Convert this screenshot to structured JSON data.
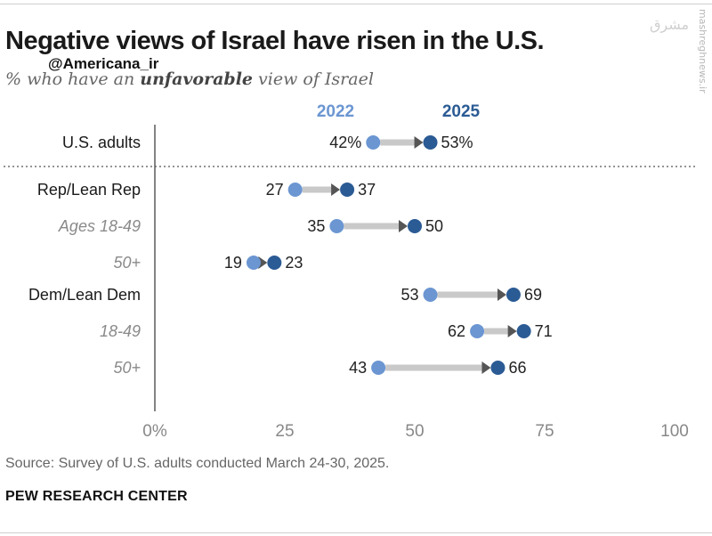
{
  "header": {
    "title": "Negative views of Israel have risen in the U.S.",
    "handle": "@Americana_ir",
    "subtitle_pre": "% who have an ",
    "subtitle_bold": "unfavorable",
    "subtitle_post": " view of Israel"
  },
  "watermark": {
    "text": "mashreghnews.ir",
    "logo_text": "مشرق"
  },
  "colors": {
    "light": "#6b96d2",
    "dark": "#2b5b94",
    "arrow": "#c9c9c9",
    "arrow_head": "#555555",
    "axis": "#333333",
    "tick_text": "#888888"
  },
  "chart_data": {
    "type": "dumbbell",
    "title": "Negative views of Israel have risen in the U.S.",
    "subtitle": "% who have an unfavorable view of Israel",
    "legend": [
      "2022",
      "2025"
    ],
    "xlim": [
      0,
      100
    ],
    "xticks": [
      0,
      25,
      50,
      75,
      100
    ],
    "xtick_labels": [
      "0%",
      "25",
      "50",
      "75",
      "100"
    ],
    "rows": [
      {
        "label": "U.S. adults",
        "italic": false,
        "y2022": 42,
        "y2025": 53,
        "label2022": "42%",
        "label2025": "53%"
      },
      {
        "label": "Rep/Lean Rep",
        "italic": false,
        "y2022": 27,
        "y2025": 37,
        "label2022": "27",
        "label2025": "37"
      },
      {
        "label": "Ages 18-49",
        "italic": true,
        "y2022": 35,
        "y2025": 50,
        "label2022": "35",
        "label2025": "50"
      },
      {
        "label": "50+",
        "italic": true,
        "y2022": 19,
        "y2025": 23,
        "label2022": "19",
        "label2025": "23"
      },
      {
        "label": "Dem/Lean Dem",
        "italic": false,
        "y2022": 53,
        "y2025": 69,
        "label2022": "53",
        "label2025": "69"
      },
      {
        "label": "18-49",
        "italic": true,
        "y2022": 62,
        "y2025": 71,
        "label2022": "62",
        "label2025": "71"
      },
      {
        "label": "50+",
        "italic": true,
        "y2022": 43,
        "y2025": 66,
        "label2022": "43",
        "label2025": "66"
      }
    ]
  },
  "footer": {
    "source": "Source: Survey of U.S. adults conducted March 24-30, 2025.",
    "brand": "PEW RESEARCH CENTER"
  }
}
